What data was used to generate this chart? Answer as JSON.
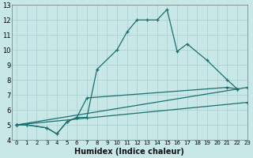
{
  "xlabel": "Humidex (Indice chaleur)",
  "bg_color": "#c8e8e8",
  "grid_color": "#a8cccc",
  "line_color": "#1a6e6e",
  "xlim_min": -0.5,
  "xlim_max": 23,
  "ylim_min": 4,
  "ylim_max": 13,
  "xticks": [
    0,
    1,
    2,
    3,
    4,
    5,
    6,
    7,
    8,
    9,
    10,
    11,
    12,
    13,
    14,
    15,
    16,
    17,
    18,
    19,
    20,
    21,
    22,
    23
  ],
  "yticks": [
    4,
    5,
    6,
    7,
    8,
    9,
    10,
    11,
    12,
    13
  ],
  "series": [
    {
      "x": [
        0,
        1,
        3,
        4,
        5,
        6,
        7,
        8,
        10,
        11,
        12,
        13,
        14,
        15,
        16,
        17,
        19,
        21,
        22
      ],
      "y": [
        5.0,
        5.0,
        4.8,
        4.4,
        5.2,
        5.5,
        5.5,
        8.7,
        10.0,
        11.2,
        12.0,
        12.0,
        12.0,
        12.7,
        9.9,
        10.4,
        9.3,
        8.0,
        7.4
      ]
    },
    {
      "x": [
        0,
        1,
        3,
        4,
        5,
        6,
        7,
        21,
        22
      ],
      "y": [
        5.0,
        5.0,
        4.8,
        4.4,
        5.2,
        5.5,
        6.8,
        7.5,
        7.4
      ]
    },
    {
      "x": [
        0,
        23
      ],
      "y": [
        5.0,
        7.5
      ]
    },
    {
      "x": [
        0,
        23
      ],
      "y": [
        5.0,
        6.5
      ]
    }
  ]
}
